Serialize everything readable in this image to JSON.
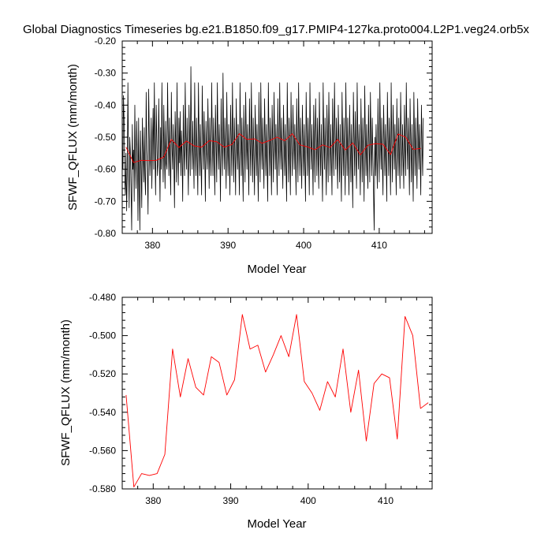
{
  "title": "Global Diagnostics Timeseries bg.e21.B1850.f09_g17.PMIP4-127ka.proto004.L2P1.veg24.orb5x",
  "colors": {
    "monthly": "#000000",
    "annual": "#ff0000",
    "axis": "#000000"
  },
  "chart_data": [
    {
      "type": "line",
      "xlabel": "Model Year",
      "ylabel": "SFWF_QFLUX (mm/month)",
      "xlim": [
        376,
        417
      ],
      "ylim": [
        -0.8,
        -0.2
      ],
      "x_ticks": [
        "380",
        "390",
        "400",
        "410"
      ],
      "y_ticks": [
        "-0.20",
        "-0.30",
        "-0.40",
        "-0.50",
        "-0.60",
        "-0.70",
        "-0.80"
      ],
      "grid": false,
      "series": [
        {
          "color": "#000000",
          "x_start": 376.0,
          "x_step": 0.08333,
          "values": [
            -0.53,
            -0.6,
            -0.37,
            -0.45,
            -0.63,
            -0.68,
            -0.55,
            -0.73,
            -0.62,
            -0.33,
            -0.58,
            -0.72,
            -0.5,
            -0.55,
            -0.66,
            -0.79,
            -0.46,
            -0.6,
            -0.54,
            -0.7,
            -0.4,
            -0.57,
            -0.66,
            -0.45,
            -0.56,
            -0.76,
            -0.44,
            -0.63,
            -0.79,
            -0.48,
            -0.6,
            -0.72,
            -0.44,
            -0.55,
            -0.64,
            -0.47,
            -0.62,
            -0.68,
            -0.36,
            -0.54,
            -0.6,
            -0.74,
            -0.35,
            -0.5,
            -0.62,
            -0.55,
            -0.44,
            -0.66,
            -0.52,
            -0.41,
            -0.6,
            -0.33,
            -0.56,
            -0.68,
            -0.4,
            -0.51,
            -0.62,
            -0.58,
            -0.38,
            -0.55,
            -0.7,
            -0.47,
            -0.6,
            -0.33,
            -0.52,
            -0.64,
            -0.4,
            -0.55,
            -0.66,
            -0.45,
            -0.58,
            -0.6,
            -0.33,
            -0.5,
            -0.62,
            -0.44,
            -0.58,
            -0.68,
            -0.36,
            -0.53,
            -0.6,
            -0.46,
            -0.58,
            -0.72,
            -0.42,
            -0.52,
            -0.64,
            -0.33,
            -0.55,
            -0.65,
            -0.44,
            -0.58,
            -0.42,
            -0.62,
            -0.48,
            -0.56,
            -0.7,
            -0.4,
            -0.54,
            -0.62,
            -0.33,
            -0.5,
            -0.6,
            -0.44,
            -0.56,
            -0.68,
            -0.4,
            -0.52,
            -0.62,
            -0.28,
            -0.5,
            -0.6,
            -0.45,
            -0.55,
            -0.66,
            -0.33,
            -0.52,
            -0.62,
            -0.44,
            -0.56,
            -0.68,
            -0.33,
            -0.5,
            -0.62,
            -0.46,
            -0.58,
            -0.68,
            -0.34,
            -0.5,
            -0.6,
            -0.42,
            -0.55,
            -0.7,
            -0.45,
            -0.54,
            -0.6,
            -0.38,
            -0.52,
            -0.66,
            -0.44,
            -0.56,
            -0.62,
            -0.33,
            -0.5,
            -0.62,
            -0.44,
            -0.56,
            -0.68,
            -0.4,
            -0.52,
            -0.64,
            -0.33,
            -0.5,
            -0.6,
            -0.46,
            -0.56,
            -0.7,
            -0.38,
            -0.52,
            -0.62,
            -0.3,
            -0.5,
            -0.6,
            -0.44,
            -0.55,
            -0.66,
            -0.36,
            -0.52,
            -0.62,
            -0.46,
            -0.56,
            -0.68,
            -0.4,
            -0.5,
            -0.62,
            -0.33,
            -0.52,
            -0.64,
            -0.44,
            -0.55,
            -0.68,
            -0.38,
            -0.52,
            -0.6,
            -0.46,
            -0.56,
            -0.68,
            -0.33,
            -0.5,
            -0.62,
            -0.44,
            -0.58,
            -0.7,
            -0.4,
            -0.52,
            -0.64,
            -0.36,
            -0.5,
            -0.6,
            -0.46,
            -0.56,
            -0.68,
            -0.38,
            -0.52,
            -0.62,
            -0.33,
            -0.5,
            -0.64,
            -0.44,
            -0.56,
            -0.68,
            -0.4,
            -0.5,
            -0.62,
            -0.46,
            -0.58,
            -0.7,
            -0.36,
            -0.52,
            -0.64,
            -0.33,
            -0.5,
            -0.6,
            -0.44,
            -0.56,
            -0.66,
            -0.38,
            -0.52,
            -0.62,
            -0.46,
            -0.58,
            -0.7,
            -0.33,
            -0.5,
            -0.62,
            -0.44,
            -0.56,
            -0.68,
            -0.4,
            -0.52,
            -0.64,
            -0.36,
            -0.5,
            -0.6,
            -0.46,
            -0.56,
            -0.68,
            -0.38,
            -0.52,
            -0.62,
            -0.33,
            -0.5,
            -0.6,
            -0.44,
            -0.56,
            -0.66,
            -0.4,
            -0.52,
            -0.62,
            -0.46,
            -0.58,
            -0.7,
            -0.33,
            -0.5,
            -0.64,
            -0.44,
            -0.56,
            -0.68,
            -0.36,
            -0.52,
            -0.62,
            -0.4,
            -0.5,
            -0.6,
            -0.46,
            -0.56,
            -0.68,
            -0.38,
            -0.52,
            -0.64,
            -0.33,
            -0.5,
            -0.62,
            -0.44,
            -0.56,
            -0.66,
            -0.4,
            -0.52,
            -0.62,
            -0.46,
            -0.58,
            -0.7,
            -0.36,
            -0.5,
            -0.62,
            -0.44,
            -0.56,
            -0.68,
            -0.33,
            -0.5,
            -0.6,
            -0.46,
            -0.56,
            -0.68,
            -0.4,
            -0.52,
            -0.64,
            -0.38,
            -0.5,
            -0.62,
            -0.44,
            -0.56,
            -0.66,
            -0.36,
            -0.52,
            -0.62,
            -0.46,
            -0.58,
            -0.7,
            -0.33,
            -0.5,
            -0.6,
            -0.44,
            -0.56,
            -0.68,
            -0.4,
            -0.52,
            -0.64,
            -0.36,
            -0.5,
            -0.62,
            -0.46,
            -0.56,
            -0.68,
            -0.38,
            -0.52,
            -0.62,
            -0.33,
            -0.5,
            -0.6,
            -0.44,
            -0.56,
            -0.66,
            -0.4,
            -0.52,
            -0.64,
            -0.46,
            -0.58,
            -0.7,
            -0.36,
            -0.5,
            -0.62,
            -0.44,
            -0.56,
            -0.68,
            -0.33,
            -0.5,
            -0.62,
            -0.44,
            -0.56,
            -0.68,
            -0.4,
            -0.52,
            -0.64,
            -0.46,
            -0.58,
            -0.72,
            -0.36,
            -0.5,
            -0.62,
            -0.42,
            -0.56,
            -0.66,
            -0.33,
            -0.5,
            -0.6,
            -0.46,
            -0.56,
            -0.68,
            -0.38,
            -0.52,
            -0.64,
            -0.44,
            -0.56,
            -0.7,
            -0.34,
            -0.5,
            -0.62,
            -0.46,
            -0.58,
            -0.66,
            -0.4,
            -0.52,
            -0.64,
            -0.36,
            -0.5,
            -0.62,
            -0.44,
            -0.56,
            -0.68,
            -0.79,
            -0.5,
            -0.62,
            -0.46,
            -0.56,
            -0.66,
            -0.38,
            -0.52,
            -0.64,
            -0.33,
            -0.5,
            -0.6,
            -0.44,
            -0.58,
            -0.68,
            -0.4,
            -0.52,
            -0.62,
            -0.46,
            -0.56,
            -0.7,
            -0.36,
            -0.5,
            -0.62,
            -0.44,
            -0.56,
            -0.68,
            -0.33,
            -0.52,
            -0.64,
            -0.4,
            -0.5,
            -0.6,
            -0.46,
            -0.56,
            -0.68,
            -0.38,
            -0.52,
            -0.62,
            -0.44,
            -0.56,
            -0.66,
            -0.36,
            -0.5,
            -0.62,
            -0.46,
            -0.56,
            -0.66,
            -0.4,
            -0.52,
            -0.62,
            -0.33,
            -0.5,
            -0.6,
            -0.44,
            -0.56,
            -0.68,
            -0.38,
            -0.52,
            -0.64,
            -0.46,
            -0.58,
            -0.7,
            -0.36,
            -0.5,
            -0.62,
            -0.44,
            -0.56,
            -0.66,
            -0.38,
            -0.5,
            -0.6,
            -0.46,
            -0.56,
            -0.68,
            -0.4,
            -0.52,
            -0.62,
            -0.44
          ]
        },
        {
          "color": "#ff0000",
          "x": [
            376.5,
            377.5,
            378.5,
            379.5,
            380.5,
            381.5,
            382.5,
            383.5,
            384.5,
            385.5,
            386.5,
            387.5,
            388.5,
            389.5,
            390.5,
            391.5,
            392.5,
            393.5,
            394.5,
            395.5,
            396.5,
            397.5,
            398.5,
            399.5,
            400.5,
            401.5,
            402.5,
            403.5,
            404.5,
            405.5,
            406.5,
            407.5,
            408.5,
            409.5,
            410.5,
            411.5,
            412.5,
            413.5,
            414.5,
            415.5
          ],
          "values": [
            -0.531,
            -0.579,
            -0.572,
            -0.573,
            -0.572,
            -0.562,
            -0.507,
            -0.532,
            -0.512,
            -0.527,
            -0.531,
            -0.511,
            -0.514,
            -0.531,
            -0.523,
            -0.489,
            -0.507,
            -0.505,
            -0.519,
            -0.51,
            -0.5,
            -0.511,
            -0.489,
            -0.524,
            -0.53,
            -0.539,
            -0.524,
            -0.532,
            -0.507,
            -0.54,
            -0.518,
            -0.555,
            -0.525,
            -0.52,
            -0.522,
            -0.554,
            -0.49,
            -0.5,
            -0.538,
            -0.535
          ]
        }
      ]
    },
    {
      "type": "line",
      "xlabel": "Model Year",
      "ylabel": "SFWF_QFLUX (mm/month)",
      "xlim": [
        376,
        416
      ],
      "ylim": [
        -0.58,
        -0.48
      ],
      "x_ticks": [
        "380",
        "390",
        "400",
        "410"
      ],
      "y_ticks": [
        "-0.480",
        "-0.500",
        "-0.520",
        "-0.540",
        "-0.560",
        "-0.580"
      ],
      "grid": false,
      "series": [
        {
          "color": "#ff0000",
          "x": [
            376.5,
            377.5,
            378.5,
            379.5,
            380.5,
            381.5,
            382.5,
            383.5,
            384.5,
            385.5,
            386.5,
            387.5,
            388.5,
            389.5,
            390.5,
            391.5,
            392.5,
            393.5,
            394.5,
            395.5,
            396.5,
            397.5,
            398.5,
            399.5,
            400.5,
            401.5,
            402.5,
            403.5,
            404.5,
            405.5,
            406.5,
            407.5,
            408.5,
            409.5,
            410.5,
            411.5,
            412.5,
            413.5,
            414.5,
            415.5
          ],
          "values": [
            -0.531,
            -0.579,
            -0.572,
            -0.573,
            -0.572,
            -0.562,
            -0.507,
            -0.532,
            -0.512,
            -0.527,
            -0.531,
            -0.511,
            -0.514,
            -0.531,
            -0.523,
            -0.489,
            -0.507,
            -0.505,
            -0.519,
            -0.51,
            -0.5,
            -0.511,
            -0.489,
            -0.524,
            -0.53,
            -0.539,
            -0.524,
            -0.532,
            -0.507,
            -0.54,
            -0.518,
            -0.555,
            -0.525,
            -0.52,
            -0.522,
            -0.554,
            -0.49,
            -0.5,
            -0.538,
            -0.535
          ]
        }
      ]
    }
  ]
}
